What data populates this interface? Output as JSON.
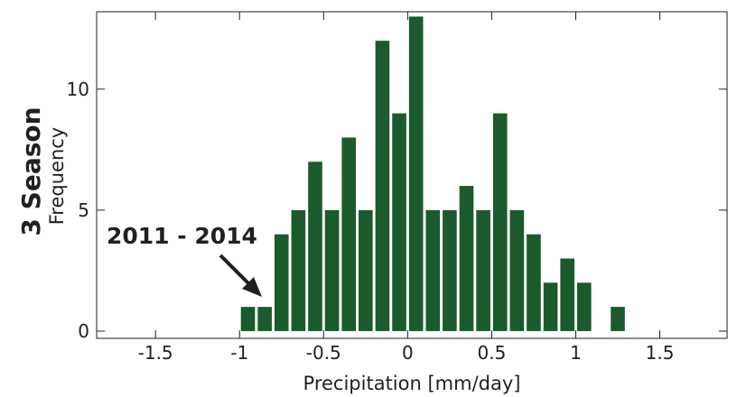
{
  "chart_data": {
    "type": "bar",
    "side_title": "3 Season",
    "xlabel": "Precipitation [mm/day]",
    "ylabel": "Frequency",
    "xlim": [
      -1.85,
      1.9
    ],
    "ylim": [
      -0.3,
      13.2
    ],
    "grid": false,
    "bar_color": "#1b5a2c",
    "bin_width": 0.1,
    "x_ticks": [
      {
        "value": -1.5,
        "label": "-1.5"
      },
      {
        "value": -1,
        "label": "-1"
      },
      {
        "value": -0.5,
        "label": "-0.5"
      },
      {
        "value": 0,
        "label": "0"
      },
      {
        "value": 0.5,
        "label": "0.5"
      },
      {
        "value": 1,
        "label": "1"
      },
      {
        "value": 1.5,
        "label": "1.5"
      }
    ],
    "y_ticks": [
      {
        "value": 0,
        "label": "0"
      },
      {
        "value": 5,
        "label": "5"
      },
      {
        "value": 10,
        "label": "10"
      }
    ],
    "x": [
      -0.95,
      -0.85,
      -0.75,
      -0.65,
      -0.55,
      -0.45,
      -0.35,
      -0.25,
      -0.15,
      -0.05,
      0.05,
      0.15,
      0.25,
      0.35,
      0.45,
      0.55,
      0.65,
      0.75,
      0.85,
      0.95,
      1.05,
      1.15,
      1.25
    ],
    "values": [
      1,
      1,
      4,
      5,
      7,
      5,
      8,
      5,
      12,
      9,
      13,
      5,
      5,
      6,
      5,
      9,
      5,
      4,
      2,
      3,
      2,
      0,
      1
    ],
    "annotation": {
      "text": "2011 - 2014",
      "points_to_x": -0.9
    }
  }
}
